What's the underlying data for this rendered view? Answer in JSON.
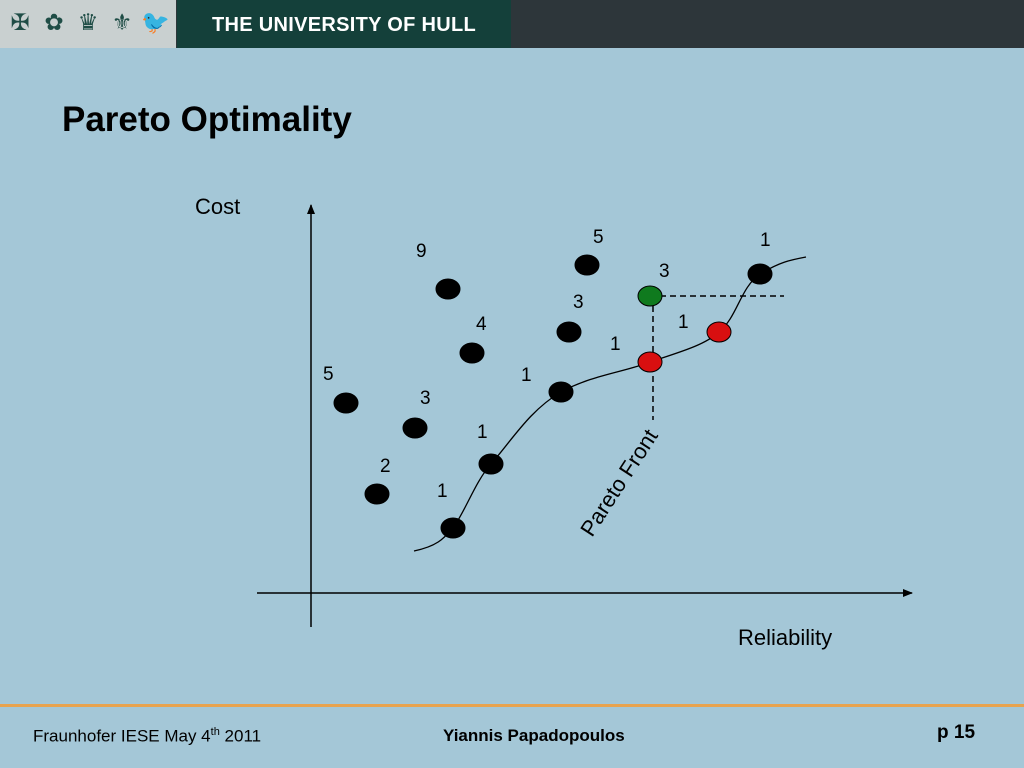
{
  "header": {
    "crest_icons": [
      {
        "name": "cross-icon",
        "glyph": "✠"
      },
      {
        "name": "rose-icon",
        "glyph": "✿"
      },
      {
        "name": "crown-icon",
        "glyph": "♛"
      },
      {
        "name": "fleur-de-lis-icon",
        "glyph": "⚜"
      },
      {
        "name": "bird-icon",
        "glyph": "🐦"
      }
    ],
    "institution": "THE UNIVERSITY OF HULL"
  },
  "slide": {
    "title": "Pareto Optimality"
  },
  "diagram": {
    "y_axis_label": "Cost",
    "x_axis_label": "Reliability",
    "front_label": "Pareto Front",
    "colors": {
      "default_point": "#000000",
      "highlight_green": "#0f7a1e",
      "highlight_red": "#d80f10",
      "background": "#a4c7d7"
    },
    "points": [
      {
        "id": "p1",
        "label": "5",
        "color": "black"
      },
      {
        "id": "p2",
        "label": "9",
        "color": "black"
      },
      {
        "id": "p3",
        "label": "4",
        "color": "black"
      },
      {
        "id": "p4",
        "label": "3",
        "color": "black"
      },
      {
        "id": "p5",
        "label": "2",
        "color": "black"
      },
      {
        "id": "p6",
        "label": "1",
        "color": "black"
      },
      {
        "id": "p7",
        "label": "1",
        "color": "black"
      },
      {
        "id": "p8",
        "label": "1",
        "color": "black"
      },
      {
        "id": "p9",
        "label": "3",
        "color": "black"
      },
      {
        "id": "p10",
        "label": "5",
        "color": "black"
      },
      {
        "id": "p11",
        "label": "3",
        "color": "green"
      },
      {
        "id": "p12",
        "label": "1",
        "color": "red"
      },
      {
        "id": "p13",
        "label": "1",
        "color": "red"
      },
      {
        "id": "p14",
        "label": "1",
        "color": "black"
      }
    ]
  },
  "footer": {
    "event_prefix": "Fraunhofer IESE May 4",
    "event_sup": "th",
    "event_suffix": " 2011",
    "author": "Yiannis Papadopoulos",
    "page": "p 15"
  }
}
